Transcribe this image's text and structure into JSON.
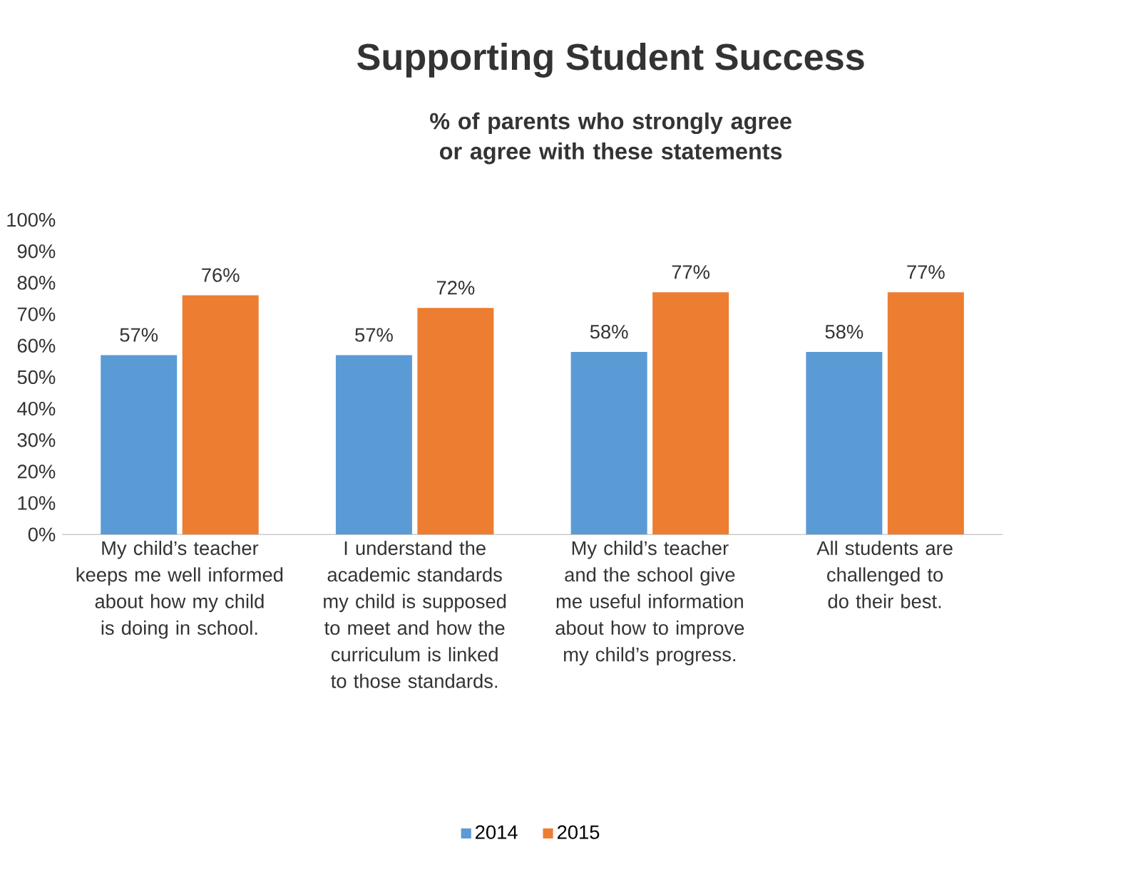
{
  "chart_data": {
    "type": "bar",
    "title": "Supporting Student Success",
    "subtitle": "% of parents who strongly agree or agree with these statements",
    "categories": [
      "My child’s teacher keeps me well informed about how my child is doing in school.",
      "I understand the academic standards my child is supposed to meet and how the curriculum is linked to those standards.",
      "My child’s teacher and the school give me useful information about how to improve my child’s progress.",
      "All students are challenged to do their best."
    ],
    "series": [
      {
        "name": "2014",
        "color": "#5b9bd5",
        "values": [
          57,
          57,
          58,
          58
        ],
        "value_labels": [
          "57%",
          "57%",
          "58%",
          "58%"
        ]
      },
      {
        "name": "2015",
        "color": "#ed7d31",
        "values": [
          76,
          72,
          77,
          77
        ],
        "value_labels": [
          "76%",
          "72%",
          "77%",
          "77%"
        ]
      }
    ],
    "ylim": [
      0,
      100
    ],
    "yticks": [
      {
        "value": 0,
        "label": "0%"
      },
      {
        "value": 10,
        "label": "10%"
      },
      {
        "value": 20,
        "label": "20%"
      },
      {
        "value": 30,
        "label": "30%"
      },
      {
        "value": 40,
        "label": "40%"
      },
      {
        "value": 50,
        "label": "50%"
      },
      {
        "value": 60,
        "label": "60%"
      },
      {
        "value": 70,
        "label": "70%"
      },
      {
        "value": 80,
        "label": "80%"
      },
      {
        "value": 90,
        "label": "90%"
      },
      {
        "value": 100,
        "label": "100%"
      }
    ],
    "legend": "bottom"
  }
}
